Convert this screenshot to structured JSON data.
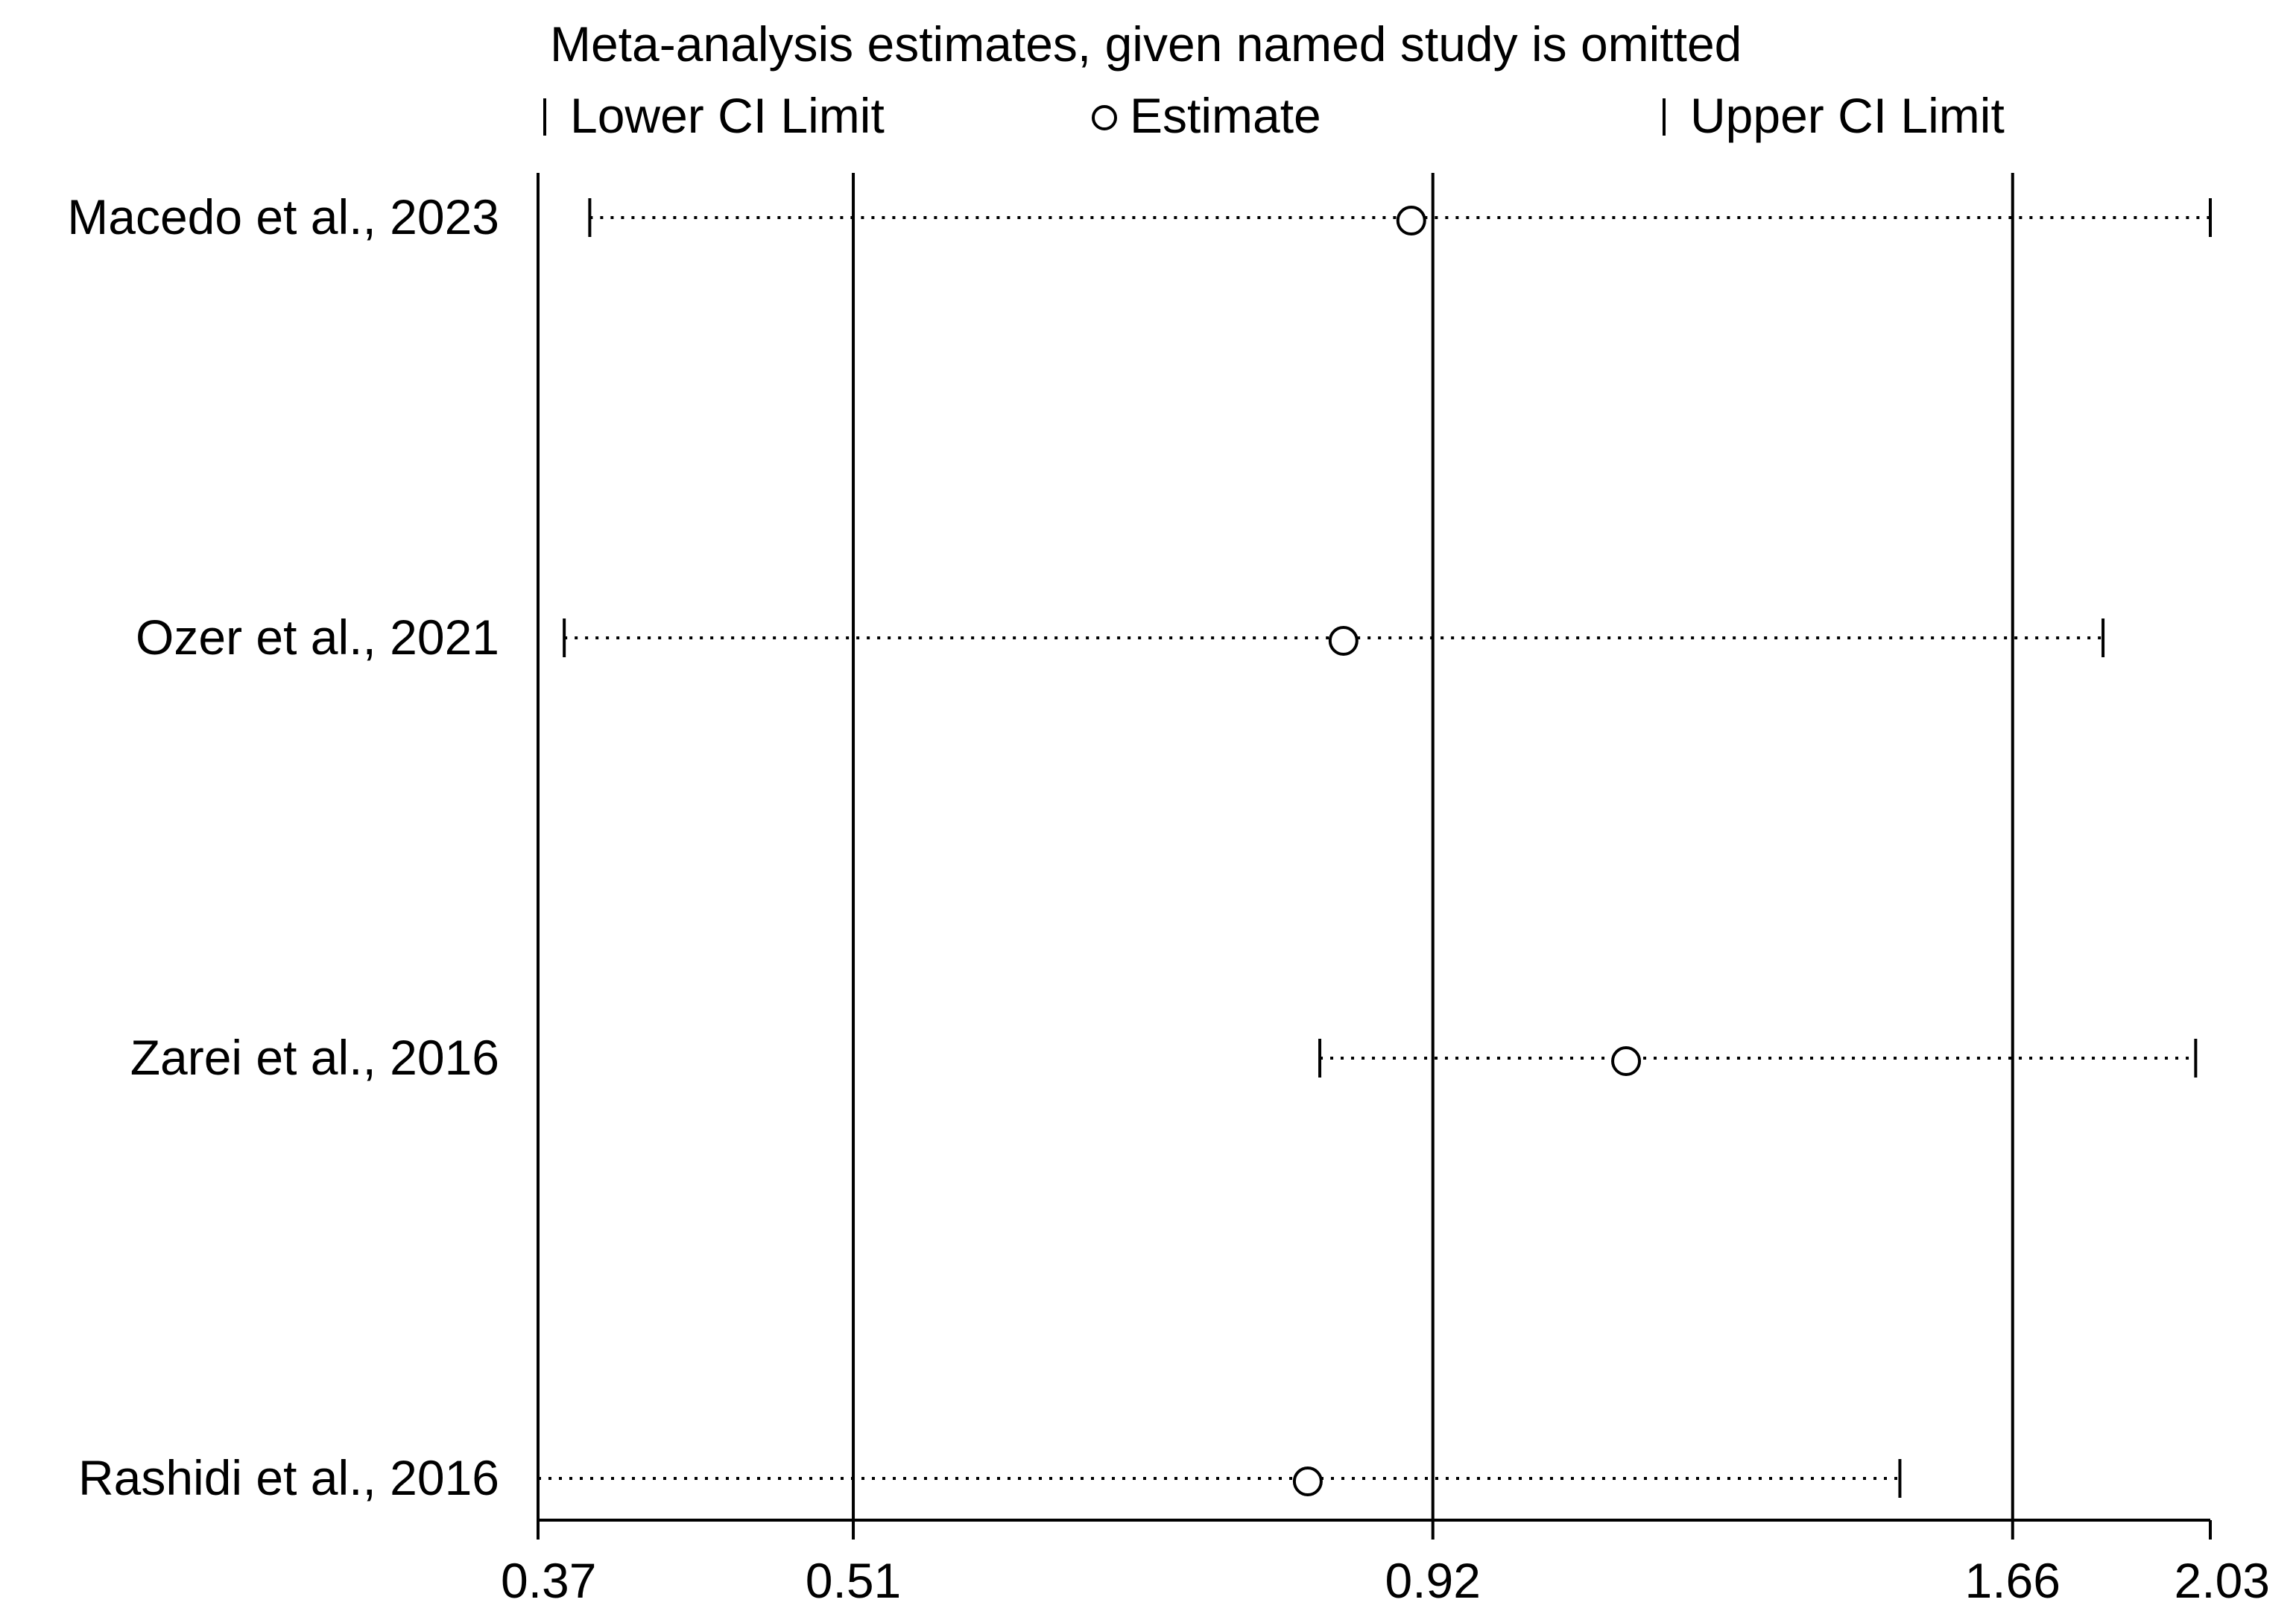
{
  "chart_data": {
    "type": "scatter",
    "title": "Meta-analysis estimates, given named study is omitted",
    "legend": {
      "position": "top",
      "items": [
        {
          "symbol": "cap",
          "label": "Lower CI Limit"
        },
        {
          "symbol": "circle",
          "label": "Estimate"
        },
        {
          "symbol": "cap",
          "label": "Upper CI Limit"
        }
      ]
    },
    "x_axis": {
      "log_scale": true,
      "xlim": [
        0.37,
        2.03
      ],
      "ticks": [
        0.37,
        0.51,
        0.92,
        1.66,
        2.03
      ],
      "tick_labels": [
        "0.37",
        "0.51",
        "0.92",
        "1.66",
        "2.03"
      ],
      "reference_lines": [
        0.37,
        0.51,
        0.92,
        1.66
      ]
    },
    "grid": false,
    "studies": [
      {
        "label": "Macedo et al., 2023",
        "lower": 0.39,
        "estimate": 0.9,
        "upper": 2.03
      },
      {
        "label": "Ozer et al., 2021",
        "lower": 0.38,
        "estimate": 0.84,
        "upper": 1.82
      },
      {
        "label": "Zarei et al., 2016",
        "lower": 0.82,
        "estimate": 1.12,
        "upper": 2.0
      },
      {
        "label": "Rashidi et  al., 2016",
        "lower": 0.37,
        "estimate": 0.81,
        "upper": 1.48
      }
    ]
  }
}
